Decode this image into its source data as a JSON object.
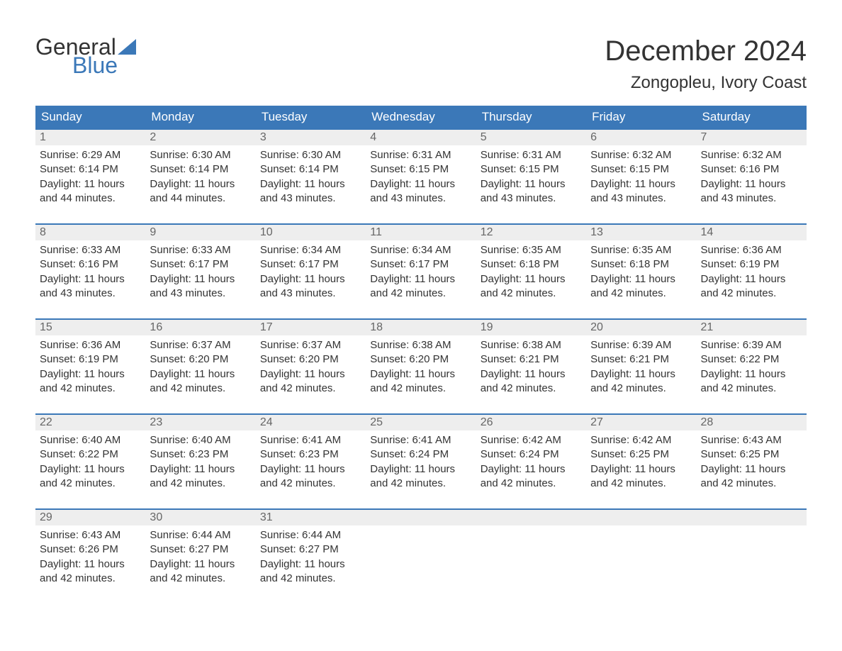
{
  "logo": {
    "text_general": "General",
    "text_blue": "Blue",
    "sail_color": "#3b78b8"
  },
  "title": {
    "month": "December 2024",
    "location": "Zongopleu, Ivory Coast"
  },
  "colors": {
    "header_bg": "#3b78b8",
    "header_text": "#ffffff",
    "week_border": "#3b78b8",
    "daynum_bg": "#eeeeee",
    "daynum_text": "#666666",
    "body_text": "#333333",
    "page_bg": "#ffffff"
  },
  "typography": {
    "month_title_fontsize": 40,
    "location_fontsize": 24,
    "dayhead_fontsize": 17,
    "daynum_fontsize": 16,
    "body_fontsize": 15,
    "logo_fontsize": 32
  },
  "day_headers": [
    "Sunday",
    "Monday",
    "Tuesday",
    "Wednesday",
    "Thursday",
    "Friday",
    "Saturday"
  ],
  "labels": {
    "sunrise": "Sunrise:",
    "sunset": "Sunset:",
    "daylight": "Daylight:"
  },
  "weeks": [
    [
      {
        "n": "1",
        "sunrise": "6:29 AM",
        "sunset": "6:14 PM",
        "daylight": "11 hours and 44 minutes."
      },
      {
        "n": "2",
        "sunrise": "6:30 AM",
        "sunset": "6:14 PM",
        "daylight": "11 hours and 44 minutes."
      },
      {
        "n": "3",
        "sunrise": "6:30 AM",
        "sunset": "6:14 PM",
        "daylight": "11 hours and 43 minutes."
      },
      {
        "n": "4",
        "sunrise": "6:31 AM",
        "sunset": "6:15 PM",
        "daylight": "11 hours and 43 minutes."
      },
      {
        "n": "5",
        "sunrise": "6:31 AM",
        "sunset": "6:15 PM",
        "daylight": "11 hours and 43 minutes."
      },
      {
        "n": "6",
        "sunrise": "6:32 AM",
        "sunset": "6:15 PM",
        "daylight": "11 hours and 43 minutes."
      },
      {
        "n": "7",
        "sunrise": "6:32 AM",
        "sunset": "6:16 PM",
        "daylight": "11 hours and 43 minutes."
      }
    ],
    [
      {
        "n": "8",
        "sunrise": "6:33 AM",
        "sunset": "6:16 PM",
        "daylight": "11 hours and 43 minutes."
      },
      {
        "n": "9",
        "sunrise": "6:33 AM",
        "sunset": "6:17 PM",
        "daylight": "11 hours and 43 minutes."
      },
      {
        "n": "10",
        "sunrise": "6:34 AM",
        "sunset": "6:17 PM",
        "daylight": "11 hours and 43 minutes."
      },
      {
        "n": "11",
        "sunrise": "6:34 AM",
        "sunset": "6:17 PM",
        "daylight": "11 hours and 42 minutes."
      },
      {
        "n": "12",
        "sunrise": "6:35 AM",
        "sunset": "6:18 PM",
        "daylight": "11 hours and 42 minutes."
      },
      {
        "n": "13",
        "sunrise": "6:35 AM",
        "sunset": "6:18 PM",
        "daylight": "11 hours and 42 minutes."
      },
      {
        "n": "14",
        "sunrise": "6:36 AM",
        "sunset": "6:19 PM",
        "daylight": "11 hours and 42 minutes."
      }
    ],
    [
      {
        "n": "15",
        "sunrise": "6:36 AM",
        "sunset": "6:19 PM",
        "daylight": "11 hours and 42 minutes."
      },
      {
        "n": "16",
        "sunrise": "6:37 AM",
        "sunset": "6:20 PM",
        "daylight": "11 hours and 42 minutes."
      },
      {
        "n": "17",
        "sunrise": "6:37 AM",
        "sunset": "6:20 PM",
        "daylight": "11 hours and 42 minutes."
      },
      {
        "n": "18",
        "sunrise": "6:38 AM",
        "sunset": "6:20 PM",
        "daylight": "11 hours and 42 minutes."
      },
      {
        "n": "19",
        "sunrise": "6:38 AM",
        "sunset": "6:21 PM",
        "daylight": "11 hours and 42 minutes."
      },
      {
        "n": "20",
        "sunrise": "6:39 AM",
        "sunset": "6:21 PM",
        "daylight": "11 hours and 42 minutes."
      },
      {
        "n": "21",
        "sunrise": "6:39 AM",
        "sunset": "6:22 PM",
        "daylight": "11 hours and 42 minutes."
      }
    ],
    [
      {
        "n": "22",
        "sunrise": "6:40 AM",
        "sunset": "6:22 PM",
        "daylight": "11 hours and 42 minutes."
      },
      {
        "n": "23",
        "sunrise": "6:40 AM",
        "sunset": "6:23 PM",
        "daylight": "11 hours and 42 minutes."
      },
      {
        "n": "24",
        "sunrise": "6:41 AM",
        "sunset": "6:23 PM",
        "daylight": "11 hours and 42 minutes."
      },
      {
        "n": "25",
        "sunrise": "6:41 AM",
        "sunset": "6:24 PM",
        "daylight": "11 hours and 42 minutes."
      },
      {
        "n": "26",
        "sunrise": "6:42 AM",
        "sunset": "6:24 PM",
        "daylight": "11 hours and 42 minutes."
      },
      {
        "n": "27",
        "sunrise": "6:42 AM",
        "sunset": "6:25 PM",
        "daylight": "11 hours and 42 minutes."
      },
      {
        "n": "28",
        "sunrise": "6:43 AM",
        "sunset": "6:25 PM",
        "daylight": "11 hours and 42 minutes."
      }
    ],
    [
      {
        "n": "29",
        "sunrise": "6:43 AM",
        "sunset": "6:26 PM",
        "daylight": "11 hours and 42 minutes."
      },
      {
        "n": "30",
        "sunrise": "6:44 AM",
        "sunset": "6:27 PM",
        "daylight": "11 hours and 42 minutes."
      },
      {
        "n": "31",
        "sunrise": "6:44 AM",
        "sunset": "6:27 PM",
        "daylight": "11 hours and 42 minutes."
      },
      {
        "empty": true
      },
      {
        "empty": true
      },
      {
        "empty": true
      },
      {
        "empty": true
      }
    ]
  ]
}
